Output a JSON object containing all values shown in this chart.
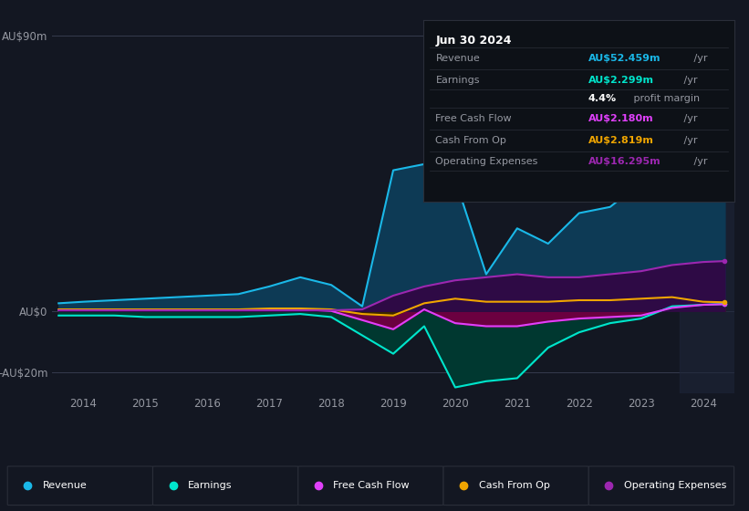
{
  "bg_color": "#131722",
  "plot_bg_color": "#131722",
  "grid_color": "#363c4e",
  "text_color": "#9598a1",
  "years": [
    2013.6,
    2014.0,
    2014.5,
    2015.0,
    2015.5,
    2016.0,
    2016.5,
    2017.0,
    2017.5,
    2018.0,
    2018.5,
    2019.0,
    2019.5,
    2020.0,
    2020.5,
    2021.0,
    2021.5,
    2022.0,
    2022.5,
    2023.0,
    2023.5,
    2024.0,
    2024.35
  ],
  "revenue": [
    2.5,
    3.0,
    3.5,
    4.0,
    4.5,
    5.0,
    5.5,
    8.0,
    11.0,
    8.5,
    1.5,
    46.0,
    48.0,
    43.0,
    12.0,
    27.0,
    22.0,
    32.0,
    34.0,
    42.0,
    82.0,
    55.0,
    52.459
  ],
  "earnings": [
    -1.5,
    -1.5,
    -1.5,
    -2.0,
    -2.0,
    -2.0,
    -2.0,
    -1.5,
    -1.0,
    -2.0,
    -8.0,
    -14.0,
    -5.0,
    -25.0,
    -23.0,
    -22.0,
    -12.0,
    -7.0,
    -4.0,
    -2.5,
    1.5,
    2.0,
    2.299
  ],
  "free_cash_flow": [
    0.3,
    0.3,
    0.3,
    0.3,
    0.3,
    0.3,
    0.3,
    0.5,
    0.5,
    0.0,
    -3.0,
    -6.0,
    0.5,
    -4.0,
    -5.0,
    -5.0,
    -3.5,
    -2.5,
    -2.0,
    -1.5,
    1.0,
    2.0,
    2.18
  ],
  "cash_from_op": [
    0.5,
    0.5,
    0.5,
    0.5,
    0.5,
    0.5,
    0.5,
    0.8,
    0.8,
    0.5,
    -1.0,
    -1.5,
    2.5,
    4.0,
    3.0,
    3.0,
    3.0,
    3.5,
    3.5,
    4.0,
    4.5,
    3.0,
    2.819
  ],
  "operating_expenses": [
    0.2,
    0.2,
    0.2,
    0.2,
    0.2,
    0.2,
    0.2,
    0.2,
    0.2,
    0.2,
    0.5,
    5.0,
    8.0,
    10.0,
    11.0,
    12.0,
    11.0,
    11.0,
    12.0,
    13.0,
    15.0,
    16.0,
    16.295
  ],
  "revenue_color": "#1ab8e8",
  "revenue_fill": "#0d3a55",
  "earnings_color": "#00e5cc",
  "earnings_fill": "#003830",
  "free_cash_flow_color": "#e040fb",
  "free_cash_flow_fill": "#6b0040",
  "cash_from_op_color": "#f0a500",
  "cash_from_op_fill": "#3a2500",
  "op_expenses_color": "#9c27b0",
  "op_expenses_fill": "#2e0a45",
  "ylim_min": -27,
  "ylim_max": 95,
  "xlim_min": 2013.5,
  "xlim_max": 2024.5,
  "yticks": [
    -20,
    0,
    90
  ],
  "ytick_labels": [
    "-AU$20m",
    "AU$0",
    "AU$90m"
  ],
  "xticks": [
    2014,
    2015,
    2016,
    2017,
    2018,
    2019,
    2020,
    2021,
    2022,
    2023,
    2024
  ],
  "info_box": {
    "date": "Jun 30 2024",
    "rows": [
      {
        "label": "Revenue",
        "value": "AU$52.459m",
        "value_color": "#1ab8e8",
        "suffix": " /yr"
      },
      {
        "label": "Earnings",
        "value": "AU$2.299m",
        "value_color": "#00e5cc",
        "suffix": " /yr"
      },
      {
        "label": "",
        "value": "4.4%",
        "value_color": "#ffffff",
        "suffix": " profit margin"
      },
      {
        "label": "Free Cash Flow",
        "value": "AU$2.180m",
        "value_color": "#e040fb",
        "suffix": " /yr"
      },
      {
        "label": "Cash From Op",
        "value": "AU$2.819m",
        "value_color": "#f0a500",
        "suffix": " /yr"
      },
      {
        "label": "Operating Expenses",
        "value": "AU$16.295m",
        "value_color": "#9c27b0",
        "suffix": " /yr"
      }
    ]
  },
  "legend": [
    {
      "label": "Revenue",
      "color": "#1ab8e8"
    },
    {
      "label": "Earnings",
      "color": "#00e5cc"
    },
    {
      "label": "Free Cash Flow",
      "color": "#e040fb"
    },
    {
      "label": "Cash From Op",
      "color": "#f0a500"
    },
    {
      "label": "Operating Expenses",
      "color": "#9c27b0"
    }
  ],
  "highlight_x_start": 2023.62,
  "box_bg": "#0d1117",
  "box_border": "#2a2e39"
}
